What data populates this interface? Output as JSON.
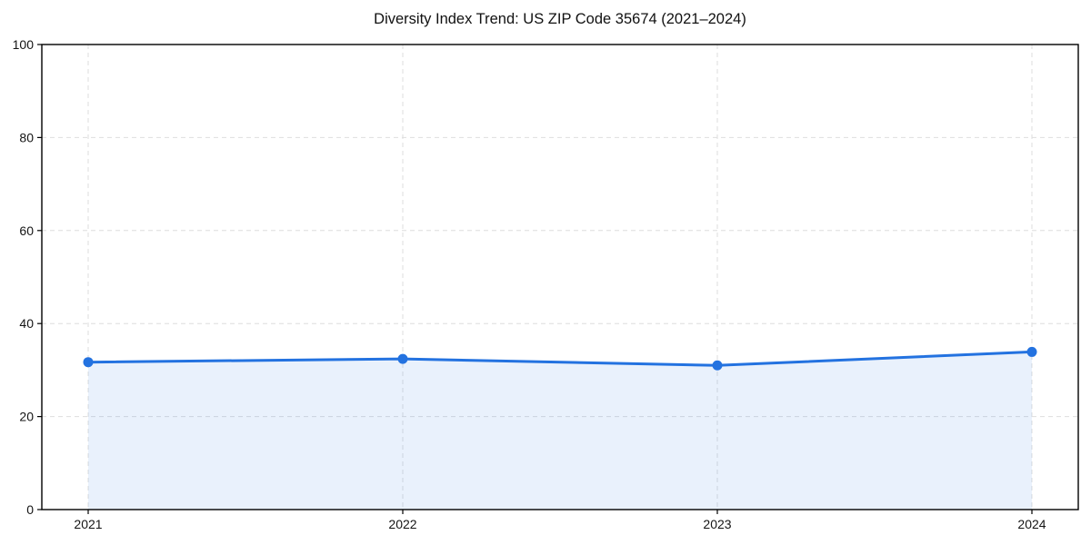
{
  "chart_data": {
    "type": "area",
    "title": "Diversity Index Trend: US ZIP Code 35674 (2021–2024)",
    "categories": [
      "2021",
      "2022",
      "2023",
      "2024"
    ],
    "series": [
      {
        "name": "Diversity Index",
        "values": [
          31.7,
          32.4,
          31.0,
          33.9
        ]
      }
    ],
    "xlabel": "",
    "ylabel": "",
    "ylim": [
      0,
      100
    ],
    "yticks": [
      0,
      20,
      40,
      60,
      80,
      100
    ],
    "grid": true,
    "legend": false,
    "layout_hints": {
      "grid_style": "dashed",
      "legend_position": "none",
      "fill_clipped_to_data_range": true
    },
    "colors": {
      "line": "#2372e0",
      "fill": "#2372e0",
      "fill_opacity": 0.1,
      "grid": "#dedede",
      "spine": "#000000",
      "tick_text": "#141414",
      "background": "#ffffff"
    }
  }
}
